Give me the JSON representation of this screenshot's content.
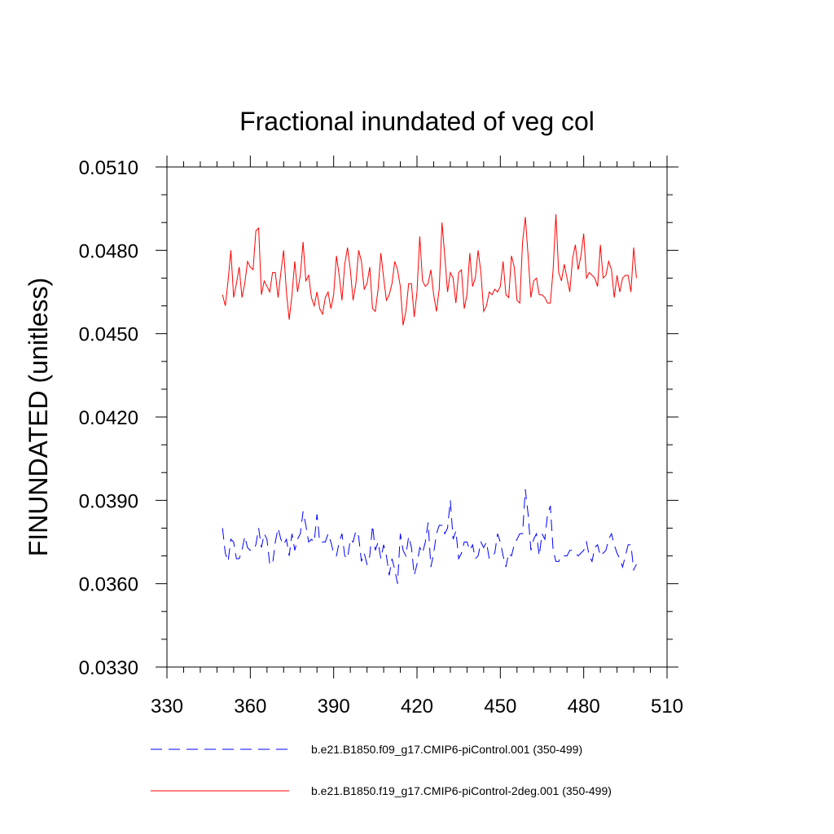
{
  "chart_data": {
    "type": "line",
    "title": "Fractional inundated of veg col",
    "xlabel": "",
    "ylabel": "FINUNDATED  (unitless)",
    "xlim": [
      330,
      510
    ],
    "ylim": [
      0.033,
      0.051
    ],
    "x_ticks": [
      330,
      360,
      390,
      420,
      450,
      480,
      510
    ],
    "x_tick_labels": [
      "330",
      "360",
      "390",
      "420",
      "450",
      "480",
      "510"
    ],
    "y_ticks": [
      0.033,
      0.036,
      0.039,
      0.042,
      0.045,
      0.048,
      0.051
    ],
    "y_tick_labels": [
      "0.0330",
      "0.0360",
      "0.0390",
      "0.0420",
      "0.0450",
      "0.0480",
      "0.0510"
    ],
    "legend_position": "bottom",
    "series": [
      {
        "name": "b.e21.B1850.f09_g17.CMIP6-piControl.001 (350-499)",
        "color": "#0000ff",
        "line_style": "dashed",
        "x_start": 350,
        "x_step": 1,
        "values": [
          0.038,
          0.0371,
          0.0368,
          0.0376,
          0.0375,
          0.0369,
          0.0369,
          0.0372,
          0.0377,
          0.0373,
          0.0372,
          0.0372,
          0.0374,
          0.038,
          0.0373,
          0.0378,
          0.0376,
          0.0367,
          0.0367,
          0.0375,
          0.038,
          0.0376,
          0.0374,
          0.0376,
          0.037,
          0.0378,
          0.0372,
          0.0376,
          0.0378,
          0.0386,
          0.0381,
          0.0375,
          0.0376,
          0.0375,
          0.0385,
          0.0375,
          0.0375,
          0.0375,
          0.0378,
          0.0375,
          0.0371,
          0.037,
          0.0375,
          0.0378,
          0.037,
          0.0369,
          0.0376,
          0.0375,
          0.0379,
          0.0377,
          0.0368,
          0.0371,
          0.0367,
          0.037,
          0.0381,
          0.0372,
          0.0375,
          0.0369,
          0.0374,
          0.037,
          0.0363,
          0.0369,
          0.0365,
          0.036,
          0.0378,
          0.0372,
          0.037,
          0.0377,
          0.0373,
          0.0363,
          0.0367,
          0.0373,
          0.0371,
          0.0375,
          0.0382,
          0.0366,
          0.0371,
          0.0378,
          0.0381,
          0.0381,
          0.0378,
          0.038,
          0.039,
          0.0376,
          0.0379,
          0.0369,
          0.0371,
          0.0375,
          0.0375,
          0.0372,
          0.0374,
          0.0369,
          0.037,
          0.0375,
          0.0373,
          0.0375,
          0.0369,
          0.037,
          0.0371,
          0.0378,
          0.0375,
          0.037,
          0.0366,
          0.0371,
          0.037,
          0.0374,
          0.0376,
          0.0378,
          0.0378,
          0.0394,
          0.0385,
          0.0372,
          0.0376,
          0.0378,
          0.037,
          0.0378,
          0.0376,
          0.0385,
          0.0388,
          0.0372,
          0.0368,
          0.0368,
          0.037,
          0.037,
          0.037,
          0.0372,
          0.0372,
          0.0371,
          0.037,
          0.0371,
          0.0372,
          0.0375,
          0.037,
          0.0368,
          0.0373,
          0.0374,
          0.037,
          0.0371,
          0.0372,
          0.0376,
          0.0378,
          0.0374,
          0.0371,
          0.0369,
          0.0366,
          0.037,
          0.0374,
          0.0374,
          0.0365,
          0.0367
        ]
      },
      {
        "name": "b.e21.B1850.f19_g17.CMIP6-piControl-2deg.001 (350-499)",
        "color": "#ff0000",
        "line_style": "solid",
        "x_start": 350,
        "x_step": 1,
        "values": [
          0.0464,
          0.046,
          0.0469,
          0.048,
          0.0463,
          0.0468,
          0.0474,
          0.0463,
          0.0468,
          0.0476,
          0.0474,
          0.0473,
          0.0487,
          0.0488,
          0.0464,
          0.0469,
          0.0467,
          0.0465,
          0.0472,
          0.0472,
          0.0463,
          0.0472,
          0.048,
          0.0465,
          0.0455,
          0.0464,
          0.0476,
          0.0465,
          0.0471,
          0.0483,
          0.0469,
          0.0471,
          0.0463,
          0.046,
          0.0465,
          0.0459,
          0.0457,
          0.0463,
          0.0465,
          0.0459,
          0.0464,
          0.0478,
          0.0471,
          0.0462,
          0.0475,
          0.0481,
          0.0473,
          0.0462,
          0.0468,
          0.048,
          0.0476,
          0.0466,
          0.0468,
          0.0474,
          0.0459,
          0.0458,
          0.0466,
          0.0479,
          0.047,
          0.0462,
          0.0464,
          0.0468,
          0.0476,
          0.0473,
          0.0467,
          0.0453,
          0.0458,
          0.0468,
          0.0468,
          0.0456,
          0.0465,
          0.0485,
          0.0469,
          0.0467,
          0.0468,
          0.0473,
          0.0464,
          0.0458,
          0.0466,
          0.049,
          0.0478,
          0.0465,
          0.0472,
          0.047,
          0.0461,
          0.0472,
          0.0473,
          0.0459,
          0.0464,
          0.0479,
          0.0467,
          0.047,
          0.048,
          0.0472,
          0.0458,
          0.046,
          0.0465,
          0.0464,
          0.0466,
          0.0465,
          0.0467,
          0.0476,
          0.0464,
          0.0463,
          0.0478,
          0.0474,
          0.0462,
          0.0461,
          0.0483,
          0.0492,
          0.0478,
          0.0463,
          0.0469,
          0.047,
          0.0464,
          0.0464,
          0.0463,
          0.0461,
          0.0461,
          0.0473,
          0.0493,
          0.0472,
          0.0469,
          0.0475,
          0.047,
          0.0465,
          0.0477,
          0.0482,
          0.0473,
          0.0478,
          0.0486,
          0.047,
          0.0472,
          0.0471,
          0.047,
          0.0467,
          0.0482,
          0.047,
          0.0471,
          0.0476,
          0.0473,
          0.0463,
          0.0471,
          0.0465,
          0.047,
          0.0471,
          0.0471,
          0.0465,
          0.0481,
          0.047
        ]
      }
    ]
  }
}
